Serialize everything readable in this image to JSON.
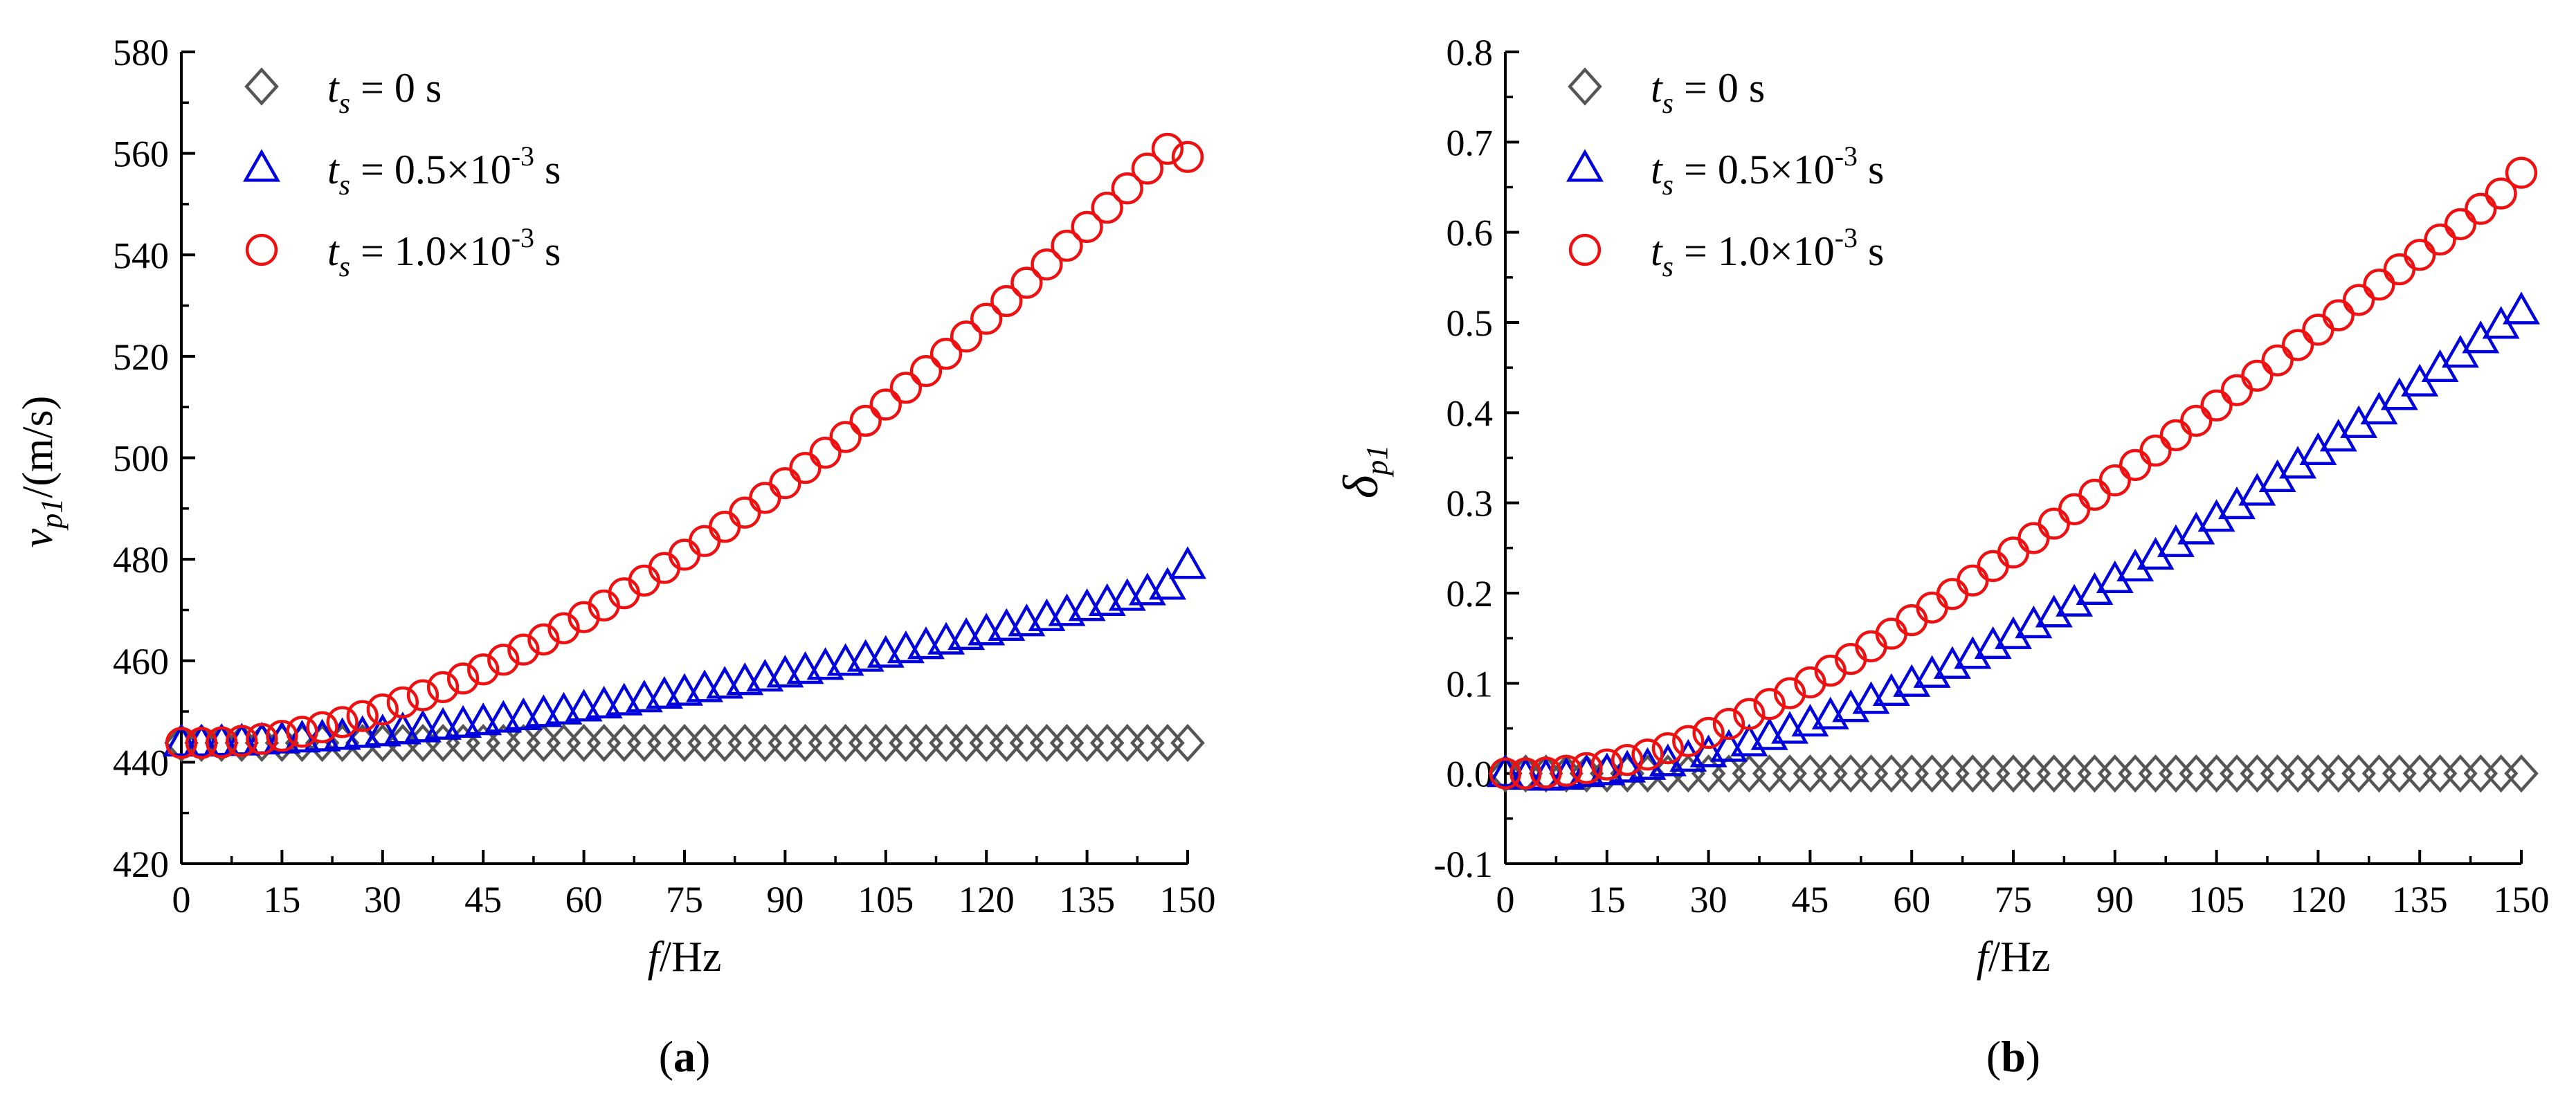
{
  "colors": {
    "s0": "#555555",
    "s1": "#0000dd",
    "s2": "#ee1111",
    "axis": "#000000"
  },
  "chart_data": [
    {
      "type": "scatter",
      "panel_label": "a",
      "xlabel": {
        "italic": "f",
        "rest": "/Hz"
      },
      "ylabel": {
        "main": "v",
        "sub": "p1",
        "rest": "/(m/s)"
      },
      "xlim": [
        0,
        150
      ],
      "ylim": [
        420,
        580
      ],
      "xticks": [
        "0",
        "15",
        "30",
        "45",
        "60",
        "75",
        "90",
        "105",
        "120",
        "135",
        "150"
      ],
      "yticks": [
        "420",
        "440",
        "460",
        "480",
        "500",
        "520",
        "540",
        "560",
        "580"
      ],
      "series": [
        {
          "name": "ts = 0 s",
          "legend": {
            "t": "t",
            "s": "s",
            "eq": " = 0 s",
            "exp": "",
            "post": ""
          },
          "marker": "diamond",
          "color_key": "s0",
          "x": [
            0,
            3,
            6,
            9,
            12,
            15,
            18,
            21,
            24,
            27,
            30,
            33,
            36,
            39,
            42,
            45,
            48,
            51,
            54,
            57,
            60,
            63,
            66,
            69,
            72,
            75,
            78,
            81,
            84,
            87,
            90,
            93,
            96,
            99,
            102,
            105,
            108,
            111,
            114,
            117,
            120,
            123,
            126,
            129,
            132,
            135,
            138,
            141,
            144,
            147,
            150
          ],
          "y": [
            443.8,
            443.8,
            443.8,
            443.8,
            443.8,
            443.8,
            443.8,
            443.8,
            443.8,
            443.8,
            443.8,
            443.8,
            443.8,
            443.8,
            443.8,
            443.8,
            443.8,
            443.8,
            443.8,
            443.8,
            443.8,
            443.8,
            443.8,
            443.8,
            443.8,
            443.8,
            443.8,
            443.8,
            443.8,
            443.8,
            443.8,
            443.8,
            443.8,
            443.8,
            443.8,
            443.8,
            443.8,
            443.8,
            443.8,
            443.8,
            443.8,
            443.8,
            443.8,
            443.8,
            443.8,
            443.8,
            443.8,
            443.8,
            443.8,
            443.8,
            443.8
          ]
        },
        {
          "name": "ts = 0.5×10-3 s",
          "legend": {
            "t": "t",
            "s": "s",
            "eq": " = 0.5×10",
            "exp": "-3",
            "post": " s"
          },
          "marker": "triangle",
          "color_key": "s1",
          "x": [
            0,
            3,
            6,
            9,
            12,
            15,
            18,
            21,
            24,
            27,
            30,
            33,
            36,
            39,
            42,
            45,
            48,
            51,
            54,
            57,
            60,
            63,
            66,
            69,
            72,
            75,
            78,
            81,
            84,
            87,
            90,
            93,
            96,
            99,
            102,
            105,
            108,
            111,
            114,
            117,
            120,
            123,
            126,
            129,
            132,
            135,
            138,
            141,
            144,
            147,
            150
          ],
          "y": [
            443.8,
            443.8,
            443.9,
            444.0,
            444.2,
            444.4,
            444.6,
            444.8,
            445.1,
            445.5,
            445.8,
            446.2,
            446.6,
            447.1,
            447.5,
            448.0,
            448.5,
            449.0,
            449.6,
            450.1,
            450.7,
            451.3,
            451.9,
            452.5,
            453.2,
            453.8,
            454.5,
            455.2,
            455.9,
            456.6,
            457.4,
            458.1,
            458.9,
            459.7,
            460.5,
            461.3,
            462.2,
            463.0,
            463.9,
            464.8,
            465.7,
            466.6,
            467.5,
            468.5,
            469.5,
            470.5,
            471.5,
            472.5,
            473.6,
            474.7,
            478.8
          ]
        },
        {
          "name": "ts = 1.0×10-3 s",
          "legend": {
            "t": "t",
            "s": "s",
            "eq": " = 1.0×10",
            "exp": "-3",
            "post": " s"
          },
          "marker": "circle",
          "color_key": "s2",
          "x": [
            0,
            3,
            6,
            9,
            12,
            15,
            18,
            21,
            24,
            27,
            30,
            33,
            36,
            39,
            42,
            45,
            48,
            51,
            54,
            57,
            60,
            63,
            66,
            69,
            72,
            75,
            78,
            81,
            84,
            87,
            90,
            93,
            96,
            99,
            102,
            105,
            108,
            111,
            114,
            117,
            120,
            123,
            126,
            129,
            132,
            135,
            138,
            141,
            144,
            147,
            150
          ],
          "y": [
            443.8,
            443.8,
            443.9,
            444.2,
            444.6,
            445.2,
            446.0,
            446.9,
            447.9,
            449.1,
            450.4,
            451.8,
            453.2,
            454.8,
            456.5,
            458.3,
            460.2,
            462.2,
            464.2,
            466.4,
            468.6,
            470.9,
            473.3,
            475.8,
            478.3,
            480.9,
            483.6,
            486.4,
            489.2,
            492.1,
            495.0,
            498.0,
            501.0,
            504.1,
            507.3,
            510.5,
            513.8,
            517.1,
            520.5,
            523.9,
            527.4,
            530.9,
            534.5,
            538.1,
            541.8,
            545.5,
            549.3,
            553.1,
            557.0,
            560.9,
            559.3
          ]
        }
      ]
    },
    {
      "type": "scatter",
      "panel_label": "b",
      "xlabel": {
        "italic": "f",
        "rest": "/Hz"
      },
      "ylabel": {
        "main": "δ",
        "sub": "p1",
        "rest": ""
      },
      "xlim": [
        0,
        150
      ],
      "ylim": [
        -0.1,
        0.8
      ],
      "xticks": [
        "0",
        "15",
        "30",
        "45",
        "60",
        "75",
        "90",
        "105",
        "120",
        "135",
        "150"
      ],
      "yticks": [
        "-0.1",
        "0.0",
        "0.1",
        "0.2",
        "0.3",
        "0.4",
        "0.5",
        "0.6",
        "0.7",
        "0.8"
      ],
      "series": [
        {
          "name": "ts = 0 s",
          "legend": {
            "t": "t",
            "s": "s",
            "eq": " = 0 s",
            "exp": "",
            "post": ""
          },
          "marker": "diamond",
          "color_key": "s0",
          "x": [
            0,
            3,
            6,
            9,
            12,
            15,
            18,
            21,
            24,
            27,
            30,
            33,
            36,
            39,
            42,
            45,
            48,
            51,
            54,
            57,
            60,
            63,
            66,
            69,
            72,
            75,
            78,
            81,
            84,
            87,
            90,
            93,
            96,
            99,
            102,
            105,
            108,
            111,
            114,
            117,
            120,
            123,
            126,
            129,
            132,
            135,
            138,
            141,
            144,
            147,
            150
          ],
          "y": [
            0.0,
            0.0,
            0.0,
            0.0,
            0.0,
            0.0,
            0.0,
            0.0,
            0.0,
            0.0,
            0.0,
            0.0,
            0.0,
            0.0,
            0.0,
            0.0,
            0.0,
            0.0,
            0.0,
            0.0,
            0.0,
            0.0,
            0.0,
            0.0,
            0.0,
            0.0,
            0.0,
            0.0,
            0.0,
            0.0,
            0.0,
            0.0,
            0.0,
            0.0,
            0.0,
            0.0,
            0.0,
            0.0,
            0.0,
            0.0,
            0.0,
            0.0,
            0.0,
            0.0,
            0.0,
            0.0,
            0.0,
            0.0,
            0.0,
            0.0,
            0.0
          ]
        },
        {
          "name": "ts = 0.5×10-3 s",
          "legend": {
            "t": "t",
            "s": "s",
            "eq": " = 0.5×10",
            "exp": "-3",
            "post": " s"
          },
          "marker": "triangle",
          "color_key": "s1",
          "x": [
            0,
            3,
            6,
            9,
            12,
            15,
            18,
            21,
            24,
            27,
            30,
            33,
            36,
            39,
            42,
            45,
            48,
            51,
            54,
            57,
            60,
            63,
            66,
            69,
            72,
            75,
            78,
            81,
            84,
            87,
            90,
            93,
            96,
            99,
            102,
            105,
            108,
            111,
            114,
            117,
            120,
            123,
            126,
            129,
            132,
            135,
            138,
            141,
            144,
            147,
            150
          ],
          "y": [
            0.0,
            -0.003,
            -0.004,
            -0.003,
            0.0,
            0.002,
            0.005,
            0.008,
            0.012,
            0.017,
            0.022,
            0.028,
            0.034,
            0.041,
            0.048,
            0.056,
            0.064,
            0.072,
            0.081,
            0.09,
            0.1,
            0.11,
            0.12,
            0.131,
            0.142,
            0.153,
            0.165,
            0.177,
            0.189,
            0.202,
            0.215,
            0.228,
            0.241,
            0.255,
            0.269,
            0.283,
            0.297,
            0.312,
            0.327,
            0.342,
            0.357,
            0.372,
            0.387,
            0.402,
            0.418,
            0.433,
            0.449,
            0.465,
            0.481,
            0.497,
            0.513
          ]
        },
        {
          "name": "ts = 1.0×10-3 s",
          "legend": {
            "t": "t",
            "s": "s",
            "eq": " = 1.0×10",
            "exp": "-3",
            "post": " s"
          },
          "marker": "circle",
          "color_key": "s2",
          "x": [
            0,
            3,
            6,
            9,
            12,
            15,
            18,
            21,
            24,
            27,
            30,
            33,
            36,
            39,
            42,
            45,
            48,
            51,
            54,
            57,
            60,
            63,
            66,
            69,
            72,
            75,
            78,
            81,
            84,
            87,
            90,
            93,
            96,
            99,
            102,
            105,
            108,
            111,
            114,
            117,
            120,
            123,
            126,
            129,
            132,
            135,
            138,
            141,
            144,
            147,
            150
          ],
          "y": [
            0.0,
            0.0,
            0.001,
            0.003,
            0.006,
            0.01,
            0.015,
            0.021,
            0.028,
            0.036,
            0.045,
            0.055,
            0.066,
            0.077,
            0.089,
            0.101,
            0.114,
            0.127,
            0.141,
            0.155,
            0.17,
            0.184,
            0.199,
            0.214,
            0.23,
            0.245,
            0.261,
            0.277,
            0.293,
            0.309,
            0.325,
            0.342,
            0.358,
            0.375,
            0.391,
            0.408,
            0.425,
            0.441,
            0.458,
            0.475,
            0.492,
            0.508,
            0.525,
            0.542,
            0.559,
            0.575,
            0.592,
            0.609,
            0.626,
            0.643,
            0.666
          ]
        }
      ]
    }
  ]
}
